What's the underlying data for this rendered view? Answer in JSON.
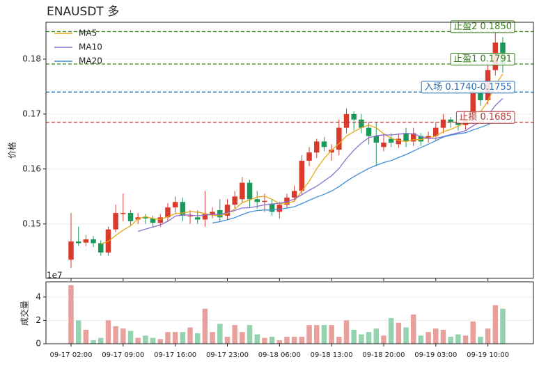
{
  "chart_data": {
    "type": "candlestick",
    "title": "ENAUSDT 多",
    "y_label": "价格",
    "categories": [
      "09-17 02:00",
      null,
      null,
      null,
      null,
      null,
      null,
      "09-17 09:00",
      null,
      null,
      null,
      null,
      null,
      null,
      "09-17 16:00",
      null,
      null,
      null,
      null,
      null,
      null,
      "09-17 23:00",
      null,
      null,
      null,
      null,
      null,
      null,
      "09-18 06:00",
      null,
      null,
      null,
      null,
      null,
      null,
      "09-18 13:00",
      null,
      null,
      null,
      null,
      null,
      null,
      "09-18 20:00",
      null,
      null,
      null,
      null,
      null,
      null,
      "09-19 03:00",
      null,
      null,
      null,
      null,
      null,
      null,
      "09-19 10:00",
      null,
      null
    ],
    "open": [
      0.1435,
      0.1468,
      0.1466,
      0.1472,
      0.1465,
      0.1448,
      0.149,
      0.1518,
      0.152,
      0.1508,
      0.1512,
      0.151,
      0.1502,
      0.1512,
      0.153,
      0.154,
      0.1515,
      0.1512,
      0.1508,
      0.1518,
      0.1525,
      0.1515,
      0.1535,
      0.1545,
      0.1575,
      0.1545,
      0.154,
      0.1537,
      0.1522,
      0.1535,
      0.1548,
      0.156,
      0.1615,
      0.163,
      0.165,
      0.163,
      0.1635,
      0.1675,
      0.17,
      0.169,
      0.1675,
      0.166,
      0.164,
      0.1655,
      0.1645,
      0.1665,
      0.165,
      0.166,
      0.1655,
      0.166,
      0.1675,
      0.169,
      0.1685,
      0.168,
      0.169,
      0.174,
      0.1725,
      0.178,
      0.183
    ],
    "high": [
      0.152,
      0.1495,
      0.148,
      0.1478,
      0.147,
      0.1495,
      0.1535,
      0.1555,
      0.1525,
      0.152,
      0.1518,
      0.1515,
      0.1518,
      0.1538,
      0.155,
      0.1548,
      0.1525,
      0.1525,
      0.156,
      0.153,
      0.1545,
      0.1545,
      0.156,
      0.1585,
      0.158,
      0.156,
      0.1555,
      0.1545,
      0.154,
      0.1555,
      0.157,
      0.1625,
      0.164,
      0.1655,
      0.1658,
      0.1645,
      0.169,
      0.171,
      0.1705,
      0.17,
      0.1685,
      0.1685,
      0.1665,
      0.1665,
      0.1665,
      0.1675,
      0.1675,
      0.1665,
      0.1668,
      0.1685,
      0.17,
      0.1695,
      0.1692,
      0.17,
      0.175,
      0.175,
      0.179,
      0.185,
      0.184
    ],
    "low": [
      0.142,
      0.146,
      0.146,
      0.1458,
      0.1442,
      0.1442,
      0.1485,
      0.1505,
      0.1498,
      0.15,
      0.15,
      0.1495,
      0.1495,
      0.1505,
      0.1518,
      0.1505,
      0.15,
      0.15,
      0.1495,
      0.151,
      0.1505,
      0.1508,
      0.1528,
      0.1538,
      0.153,
      0.1528,
      0.1522,
      0.1515,
      0.151,
      0.1528,
      0.154,
      0.1552,
      0.1605,
      0.162,
      0.1632,
      0.1615,
      0.1625,
      0.1665,
      0.167,
      0.1665,
      0.1645,
      0.1605,
      0.1632,
      0.164,
      0.1638,
      0.164,
      0.1642,
      0.1642,
      0.1648,
      0.1652,
      0.1665,
      0.1675,
      0.167,
      0.1672,
      0.1682,
      0.1715,
      0.1718,
      0.177,
      0.1775
    ],
    "close": [
      0.1468,
      0.1465,
      0.1472,
      0.1465,
      0.1448,
      0.149,
      0.152,
      0.152,
      0.1505,
      0.1512,
      0.151,
      0.1502,
      0.1512,
      0.153,
      0.154,
      0.1515,
      0.1515,
      0.1508,
      0.1518,
      0.1522,
      0.1512,
      0.1535,
      0.155,
      0.1575,
      0.1545,
      0.154,
      0.1542,
      0.1522,
      0.1535,
      0.1548,
      0.156,
      0.1615,
      0.163,
      0.165,
      0.164,
      0.1635,
      0.1675,
      0.17,
      0.169,
      0.1675,
      0.166,
      0.1648,
      0.1648,
      0.1648,
      0.1655,
      0.165,
      0.1665,
      0.165,
      0.166,
      0.1675,
      0.169,
      0.1685,
      0.168,
      0.169,
      0.174,
      0.1725,
      0.178,
      0.183,
      0.179
    ],
    "up_color": "#d93a2b",
    "down_color": "#1a9a5a",
    "series": [
      {
        "name": "MA5",
        "color": "#e6a817",
        "values": [
          null,
          null,
          null,
          null,
          0.14636,
          0.1468,
          0.1479,
          0.14886,
          0.14966,
          0.15094,
          0.15134,
          0.15098,
          0.15082,
          0.15132,
          0.15188,
          0.15198,
          0.15224,
          0.15216,
          0.15192,
          0.15156,
          0.1515,
          0.1519,
          0.15274,
          0.15388,
          0.15434,
          0.1549,
          0.15504,
          0.15448,
          0.15368,
          0.15374,
          0.15414,
          0.156,
          0.15776,
          0.16006,
          0.1619,
          0.1634,
          0.1646,
          0.166,
          0.1668,
          0.1675,
          0.168,
          0.16746,
          0.16642,
          0.16558,
          0.16518,
          0.16498,
          0.16532,
          0.16536,
          0.1656,
          0.166,
          0.1668,
          0.1672,
          0.1678,
          0.1684,
          0.1697,
          0.1704,
          0.1723,
          0.1753,
          0.1773
        ]
      },
      {
        "name": "MA10",
        "color": "#8a6fcf",
        "values": [
          null,
          null,
          null,
          null,
          null,
          null,
          null,
          null,
          null,
          0.14865,
          0.14907,
          0.14944,
          0.14984,
          0.15049,
          0.15141,
          0.15166,
          0.15161,
          0.15149,
          0.15162,
          0.15172,
          0.15174,
          0.15207,
          0.15245,
          0.1529,
          0.15295,
          0.1532,
          0.15347,
          0.15361,
          0.15378,
          0.15404,
          0.15452,
          0.15532,
          0.15612,
          0.15687,
          0.15782,
          0.15877,
          0.1601,
          0.16188,
          0.16343,
          0.1647,
          0.1657,
          0.16603,
          0.16621,
          0.16619,
          0.16634,
          0.16649,
          0.16639,
          0.16589,
          0.16559,
          0.16559,
          0.16589,
          0.16626,
          0.16658,
          0.167,
          0.16785,
          0.1686,
          0.16975,
          0.17155,
          0.17285
        ]
      },
      {
        "name": "MA20",
        "color": "#3f8fd8",
        "values": [
          null,
          null,
          null,
          null,
          null,
          null,
          null,
          null,
          null,
          null,
          null,
          null,
          null,
          null,
          null,
          null,
          null,
          null,
          null,
          0.15019,
          0.15041,
          0.15076,
          0.15115,
          0.1517,
          0.15218,
          0.15243,
          0.15254,
          0.15255,
          0.1527,
          0.15288,
          0.15313,
          0.1537,
          0.15429,
          0.15489,
          0.15539,
          0.15599,
          0.15679,
          0.15775,
          0.15861,
          0.15937,
          0.16011,
          0.16068,
          0.16117,
          0.16153,
          0.16208,
          0.16263,
          0.16325,
          0.16389,
          0.16451,
          0.16515,
          0.1658,
          0.16615,
          0.1664,
          0.1666,
          0.1671,
          0.16755,
          0.16807,
          0.16872,
          0.16922
        ]
      }
    ],
    "ylim": [
      0.1401,
      0.1867
    ],
    "yticks": [
      0.15,
      0.16,
      0.17,
      0.18
    ],
    "levels": [
      {
        "label": "止盈2 0.1850",
        "value": 0.185,
        "color": "#3a7d1e"
      },
      {
        "label": "止盈1 0.1791",
        "value": 0.1791,
        "color": "#3a7d1e"
      },
      {
        "label": "入场 0.1740-0.1755",
        "value": 0.174,
        "color": "#2a6db0"
      },
      {
        "label": "止损 0.1685",
        "value": 0.1685,
        "color": "#b33a3a"
      }
    ],
    "legend": "upper left",
    "grid": true,
    "volume": {
      "y_label": "成交量",
      "offset_label": "1e7",
      "values": [
        5.0,
        2.0,
        1.2,
        0.3,
        0.5,
        2.0,
        1.5,
        1.3,
        1.1,
        0.5,
        0.7,
        0.5,
        0.4,
        1.0,
        1.0,
        1.0,
        1.4,
        0.9,
        3.0,
        1.0,
        1.7,
        0.6,
        1.6,
        1.0,
        1.6,
        0.8,
        0.5,
        0.6,
        0.3,
        0.6,
        0.6,
        0.6,
        1.6,
        1.6,
        1.6,
        1.6,
        0.6,
        2.0,
        1.2,
        0.8,
        1.0,
        1.3,
        0.7,
        2.2,
        1.8,
        1.4,
        2.5,
        0.7,
        1.0,
        1.3,
        1.2,
        0.6,
        0.8,
        0.7,
        1.9,
        0.6,
        1.3,
        3.3,
        3.0
      ],
      "up_color": "#e8a09c",
      "down_color": "#93d3ae",
      "ylim": [
        0,
        5.3
      ],
      "yticks": [
        0,
        2,
        4
      ]
    }
  }
}
